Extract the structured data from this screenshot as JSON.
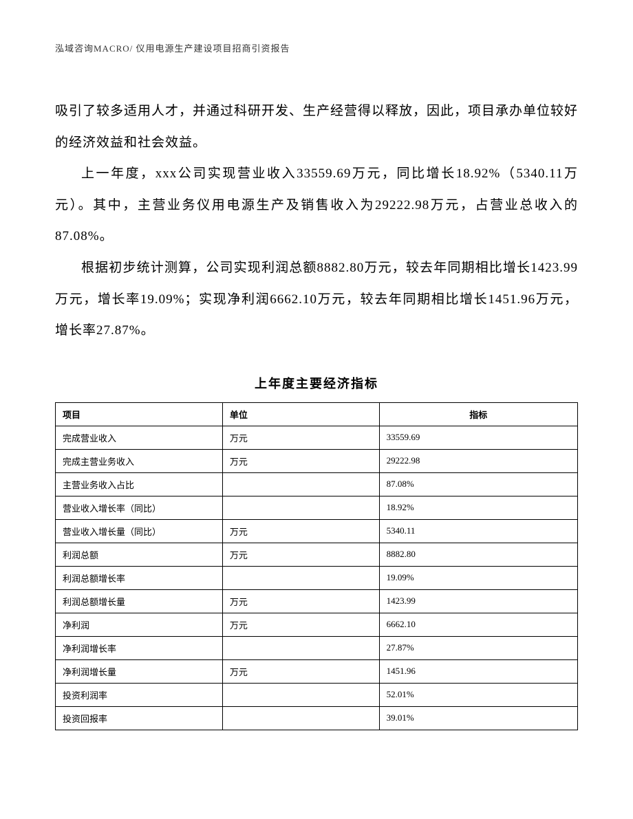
{
  "header": {
    "text": "泓域咨询MACRO/ 仪用电源生产建设项目招商引资报告"
  },
  "body": {
    "p1": "吸引了较多适用人才，并通过科研开发、生产经营得以释放，因此，项目承办单位较好的经济效益和社会效益。",
    "p2": "上一年度，xxx公司实现营业收入33559.69万元，同比增长18.92%（5340.11万元）。其中，主营业务仪用电源生产及销售收入为29222.98万元，占营业总收入的87.08%。",
    "p3": "根据初步统计测算，公司实现利润总额8882.80万元，较去年同期相比增长1423.99万元，增长率19.09%；实现净利润6662.10万元，较去年同期相比增长1451.96万元，增长率27.87%。"
  },
  "table": {
    "title": "上年度主要经济指标",
    "headers": {
      "project": "项目",
      "unit": "单位",
      "value": "指标"
    },
    "rows": [
      {
        "project": "完成营业收入",
        "unit": "万元",
        "value": "33559.69"
      },
      {
        "project": "完成主营业务收入",
        "unit": "万元",
        "value": "29222.98"
      },
      {
        "project": "主营业务收入占比",
        "unit": "",
        "value": "87.08%"
      },
      {
        "project": "营业收入增长率（同比）",
        "unit": "",
        "value": "18.92%"
      },
      {
        "project": "营业收入增长量（同比）",
        "unit": "万元",
        "value": "5340.11"
      },
      {
        "project": "利润总额",
        "unit": "万元",
        "value": "8882.80"
      },
      {
        "project": "利润总额增长率",
        "unit": "",
        "value": "19.09%"
      },
      {
        "project": "利润总额增长量",
        "unit": "万元",
        "value": "1423.99"
      },
      {
        "project": "净利润",
        "unit": "万元",
        "value": "6662.10"
      },
      {
        "project": "净利润增长率",
        "unit": "",
        "value": "27.87%"
      },
      {
        "project": "净利润增长量",
        "unit": "万元",
        "value": "1451.96"
      },
      {
        "project": "投资利润率",
        "unit": "",
        "value": "52.01%"
      },
      {
        "project": "投资回报率",
        "unit": "",
        "value": "39.01%"
      }
    ]
  },
  "styling": {
    "background_color": "#ffffff",
    "text_color": "#000000",
    "header_color": "#333333",
    "border_color": "#000000",
    "body_fontsize": 19,
    "table_fontsize": 13,
    "header_fontsize": 13,
    "table_title_fontsize": 18,
    "line_height": 2.4
  }
}
